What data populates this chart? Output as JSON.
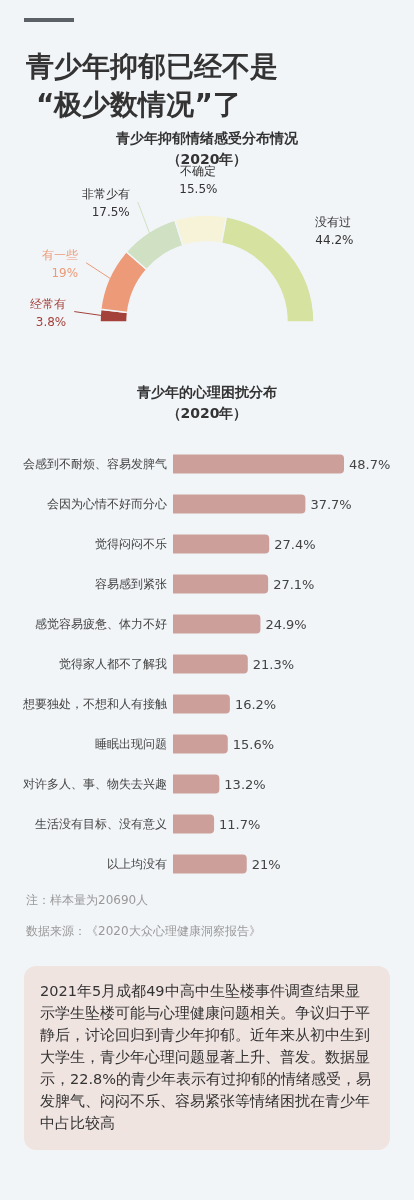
{
  "chart_data": [
    {
      "type": "donut",
      "title": "青少年抑郁情绪感受分布情况",
      "subtitle": "（2020年）",
      "annotations": [
        "青少年抑郁已经不是“极少数情况”了"
      ],
      "categories": [
        "经常有",
        "有一些",
        "非常少有",
        "不确定",
        "没有过"
      ],
      "values": [
        3.8,
        19,
        17.5,
        15.5,
        44.2
      ],
      "value_labels": [
        "3.8%",
        "19%",
        "17.5%",
        "15.5%",
        "44.2%"
      ],
      "colors": [
        "#a3413a",
        "#ec9a78",
        "#cfe0c3",
        "#f6f3d8",
        "#d6e2a0"
      ]
    },
    {
      "type": "bar",
      "orientation": "horizontal",
      "title": "青少年的心理困扰分布",
      "subtitle": "（2020年）",
      "categories": [
        "会感到不耐烦、容易发脾气",
        "会因为心情不好而分心",
        "觉得闷闷不乐",
        "容易感到紧张",
        "感觉容易疲惫、体力不好",
        "觉得家人都不了解我",
        "想要独处，不想和人有接触",
        "睡眠出现问题",
        "对许多人、事、物失去兴趣",
        "生活没有目标、没有意义",
        "以上均没有"
      ],
      "values": [
        48.7,
        37.7,
        27.4,
        27.1,
        24.9,
        21.3,
        16.2,
        15.6,
        13.2,
        11.7,
        21
      ],
      "value_labels": [
        "48.7%",
        "37.7%",
        "27.4%",
        "27.1%",
        "24.9%",
        "21.3%",
        "16.2%",
        "15.6%",
        "13.2%",
        "11.7%",
        "21%"
      ],
      "color": "#cc9f9b",
      "annotations": [
        "注：样本量为20690人",
        "数据来源：《2020大众心理健康洞察报告》",
        "2021年5月成都49中高中生坠楼事件调查结果显示学生坠楼可能与心理健康问题相关。争议归于平静后，讨论回归到青少年抑郁。近年来从初中生到大学生，青少年心理问题显著上升、普发。数据显示，22.8%的青少年表示有过抑郁的情绪感受，易发脾气、闷闷不乐、容易紧张等情绪困扰在青少年中占比较高"
      ]
    }
  ]
}
